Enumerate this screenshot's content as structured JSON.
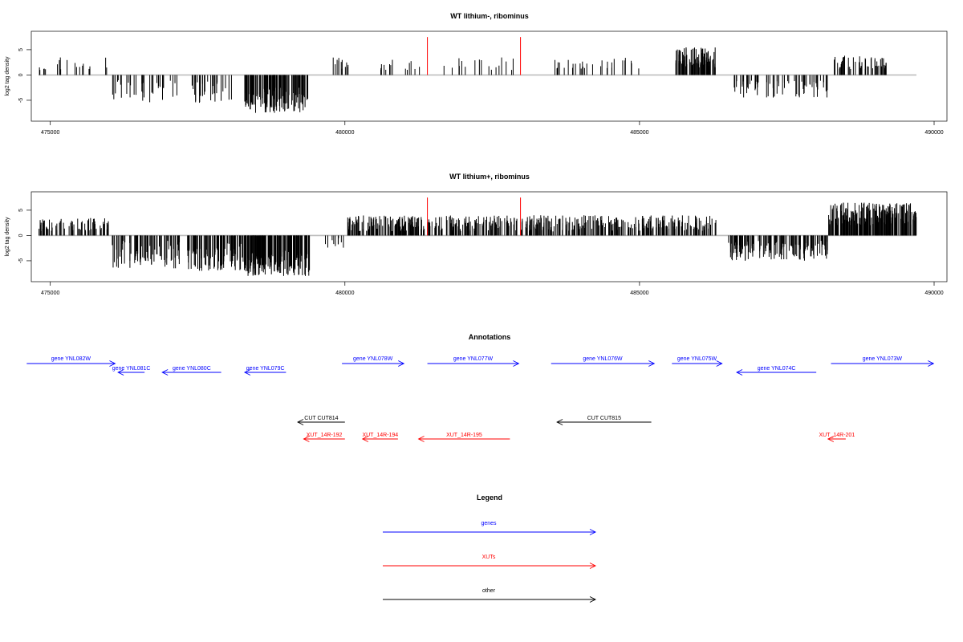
{
  "chart_data": [
    {
      "type": "bar",
      "title": "WT lithium-, ribominus",
      "ylabel": "log2 tag density",
      "xlim": [
        474800,
        490000
      ],
      "ylim": [
        -8.5,
        8
      ],
      "yticks": [
        -5,
        0,
        5
      ],
      "xticks": [
        475000,
        480000,
        485000,
        490000
      ],
      "xtick_labels": [
        "475000",
        "480000",
        "485000",
        "490000"
      ],
      "track_start": 474800,
      "track_end": 489700,
      "highlights": [
        {
          "x": 481400,
          "value": 7.5,
          "color": "#ff0000"
        },
        {
          "x": 482980,
          "value": 7.5,
          "color": "#ff0000"
        }
      ],
      "segments": [
        {
          "start": 474800,
          "end": 475000,
          "min": 0.8,
          "max": 1.6,
          "density": 0.025
        },
        {
          "start": 475000,
          "end": 476000,
          "min": 1.0,
          "max": 3.5,
          "density": 0.015
        },
        {
          "start": 476050,
          "end": 477200,
          "min": -5.5,
          "max": -1.0,
          "density": 0.03
        },
        {
          "start": 477400,
          "end": 478200,
          "min": -5.5,
          "max": -1.0,
          "density": 0.035
        },
        {
          "start": 478300,
          "end": 479400,
          "min": -7.5,
          "max": -2.5,
          "density": 0.12
        },
        {
          "start": 479800,
          "end": 480200,
          "min": 1.0,
          "max": 3.5,
          "density": 0.03
        },
        {
          "start": 480600,
          "end": 481300,
          "min": 1.0,
          "max": 3.0,
          "density": 0.02
        },
        {
          "start": 481500,
          "end": 482900,
          "min": 1.0,
          "max": 3.5,
          "density": 0.012
        },
        {
          "start": 483500,
          "end": 485000,
          "min": 1.0,
          "max": 3.5,
          "density": 0.02
        },
        {
          "start": 485600,
          "end": 486300,
          "min": 1.5,
          "max": 5.5,
          "density": 0.14
        },
        {
          "start": 486600,
          "end": 488200,
          "min": -4.5,
          "max": -1.0,
          "density": 0.04
        },
        {
          "start": 488300,
          "end": 489200,
          "min": 1.0,
          "max": 4.0,
          "density": 0.06
        }
      ]
    },
    {
      "type": "bar",
      "title": "WT lithium+, ribominus",
      "ylabel": "log2 tag density",
      "xlim": [
        474800,
        490000
      ],
      "ylim": [
        -8.5,
        8
      ],
      "yticks": [
        -5,
        0,
        5
      ],
      "xticks": [
        475000,
        480000,
        485000,
        490000
      ],
      "xtick_labels": [
        "475000",
        "480000",
        "485000",
        "490000"
      ],
      "track_start": 474800,
      "track_end": 489700,
      "highlights": [
        {
          "x": 481400,
          "value": 7.5,
          "color": "#ff0000"
        },
        {
          "x": 482980,
          "value": 7.5,
          "color": "#ff0000"
        }
      ],
      "segments": [
        {
          "start": 474800,
          "end": 476000,
          "min": 0.8,
          "max": 3.5,
          "density": 0.06
        },
        {
          "start": 476050,
          "end": 477200,
          "min": -6.5,
          "max": -1.0,
          "density": 0.07
        },
        {
          "start": 477300,
          "end": 478300,
          "min": -7.0,
          "max": -1.5,
          "density": 0.09
        },
        {
          "start": 478300,
          "end": 479400,
          "min": -8.0,
          "max": -3.0,
          "density": 0.16
        },
        {
          "start": 479500,
          "end": 480000,
          "min": -3.0,
          "max": -0.5,
          "density": 0.02
        },
        {
          "start": 480000,
          "end": 486300,
          "min": 0.8,
          "max": 4.0,
          "density": 0.08
        },
        {
          "start": 486500,
          "end": 488200,
          "min": -5.0,
          "max": -1.0,
          "density": 0.09
        },
        {
          "start": 488200,
          "end": 489700,
          "min": 2.0,
          "max": 6.5,
          "density": 0.14
        }
      ]
    }
  ],
  "annotations": {
    "title": "Annotations",
    "genes": [
      {
        "label": "gene YNL082W",
        "start": 474600,
        "end": 476100,
        "dir": "right",
        "row": 0
      },
      {
        "label": "gene YNL081C",
        "start": 476150,
        "end": 476600,
        "dir": "left",
        "row": 1
      },
      {
        "label": "gene YNL080C",
        "start": 476900,
        "end": 477900,
        "dir": "left",
        "row": 1
      },
      {
        "label": "gene YNL079C",
        "start": 478300,
        "end": 479000,
        "dir": "left",
        "row": 1
      },
      {
        "label": "gene YNL078W",
        "start": 479950,
        "end": 481000,
        "dir": "right",
        "row": 0
      },
      {
        "label": "gene YNL077W",
        "start": 481400,
        "end": 482950,
        "dir": "right",
        "row": 0
      },
      {
        "label": "gene YNL076W",
        "start": 483500,
        "end": 485250,
        "dir": "right",
        "row": 0
      },
      {
        "label": "gene YNL075W",
        "start": 485550,
        "end": 486400,
        "dir": "right",
        "row": 0
      },
      {
        "label": "gene YNL074C",
        "start": 486650,
        "end": 488000,
        "dir": "left",
        "row": 1
      },
      {
        "label": "gene YNL073W",
        "start": 488250,
        "end": 489990,
        "dir": "right",
        "row": 0
      }
    ],
    "other": [
      {
        "label": "CUT CUT814",
        "start": 479200,
        "end": 480000,
        "dir": "left"
      },
      {
        "label": "CUT CUT815",
        "start": 483600,
        "end": 485200,
        "dir": "left"
      }
    ],
    "xuts": [
      {
        "label": "XUT_14R-192",
        "start": 479300,
        "end": 480000,
        "dir": "left"
      },
      {
        "label": "XUT_14R-194",
        "start": 480300,
        "end": 480900,
        "dir": "left"
      },
      {
        "label": "XUT_14R-195",
        "start": 481250,
        "end": 482800,
        "dir": "left"
      },
      {
        "label": "XUT_14R-201",
        "start": 488200,
        "end": 488500,
        "dir": "left"
      }
    ]
  },
  "legend": {
    "title": "Legend",
    "items": [
      {
        "label": "genes",
        "color": "#0000ff"
      },
      {
        "label": "XUTs",
        "color": "#ff0000"
      },
      {
        "label": "other",
        "color": "#000000"
      }
    ]
  },
  "colors": {
    "gene": "#0000ff",
    "xut": "#ff0000",
    "other": "#000000",
    "baseline": "#bebebe"
  }
}
